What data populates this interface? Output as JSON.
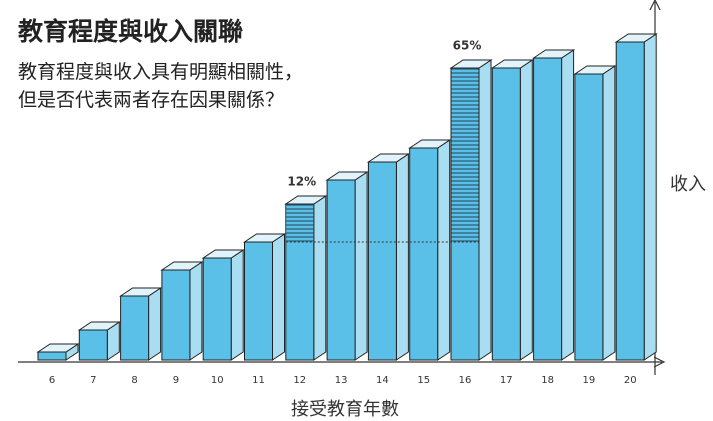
{
  "chart_data": {
    "type": "bar3d",
    "title": "教育程度與收入關聯",
    "subtitle": "教育程度與收入具有明顯相關性，但是否代表兩者存在因果關係？",
    "x_label": "接受教育年數",
    "y_label": "收入",
    "categories": [
      "6",
      "7",
      "8",
      "9",
      "10",
      "11",
      "12",
      "13",
      "14",
      "15",
      "16",
      "17",
      "18",
      "19",
      "20"
    ],
    "values": [
      8,
      30,
      64,
      90,
      102,
      118,
      156,
      180,
      198,
      212,
      292,
      292,
      302,
      286,
      318
    ],
    "color": "#5bc0e8",
    "ylim": [
      0,
      330
    ],
    "annotations": [
      "12%",
      "65%"
    ]
  }
}
